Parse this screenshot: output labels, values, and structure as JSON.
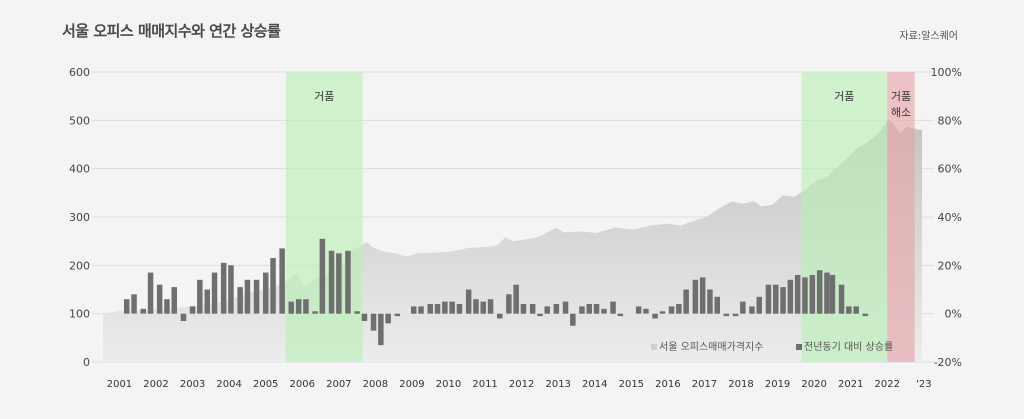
{
  "title": "서울 오피스 매매지수와 연간 상승률",
  "source": "자료:알스퀘어",
  "colors": {
    "index_area": "#c4c4c4",
    "bar": "#6f6f6f",
    "bubble": "#b8f0b4",
    "bubble_end": "#e9a3a8",
    "grid": "#dedede"
  },
  "chart_data": {
    "type": "area+bar",
    "yleft": {
      "ticks": [
        0,
        100,
        200,
        300,
        400,
        500,
        600
      ],
      "min": 0,
      "max": 600
    },
    "yright": {
      "ticks": [
        "-20%",
        "0%",
        "20%",
        "40%",
        "60%",
        "80%",
        "100%"
      ],
      "min": -20,
      "max": 100
    },
    "x_labels": [
      "2001",
      "2002",
      "2003",
      "2004",
      "2005",
      "2006",
      "2007",
      "2008",
      "2009",
      "2010",
      "2011",
      "2012",
      "2013",
      "2014",
      "2015",
      "2016",
      "2017",
      "2018",
      "2019",
      "2020",
      "2021",
      "2022",
      "'23"
    ],
    "x_range": [
      2001,
      2023.4
    ],
    "legend": [
      "서울 오피스매매가격지수",
      "전년동기 대비 상승률"
    ],
    "annotations": [
      {
        "label": "거품",
        "from": 2006.0,
        "to": 2008.1,
        "color": "bubble"
      },
      {
        "label": "거품",
        "from": 2020.1,
        "to": 2022.45,
        "color": "bubble"
      },
      {
        "label": "거품\n해소",
        "from": 2022.45,
        "to": 2023.2,
        "color": "bubble_end"
      }
    ],
    "index_series": {
      "name": "서울 오피스매매가격지수",
      "points": [
        [
          2001.0,
          100
        ],
        [
          2001.5,
          107
        ],
        [
          2002.0,
          107
        ],
        [
          2002.5,
          110
        ],
        [
          2003.0,
          112
        ],
        [
          2003.5,
          116
        ],
        [
          2004.0,
          120
        ],
        [
          2004.5,
          130
        ],
        [
          2005.0,
          143
        ],
        [
          2005.5,
          152
        ],
        [
          2006.0,
          165
        ],
        [
          2006.3,
          185
        ],
        [
          2006.5,
          155
        ],
        [
          2006.8,
          173
        ],
        [
          2007.0,
          180
        ],
        [
          2007.5,
          192
        ],
        [
          2007.8,
          232
        ],
        [
          2008.0,
          238
        ],
        [
          2008.2,
          248
        ],
        [
          2008.4,
          236
        ],
        [
          2008.7,
          228
        ],
        [
          2009.0,
          225
        ],
        [
          2009.3,
          218
        ],
        [
          2009.6,
          225
        ],
        [
          2010.0,
          226
        ],
        [
          2010.5,
          228
        ],
        [
          2011.0,
          236
        ],
        [
          2011.5,
          238
        ],
        [
          2011.8,
          242
        ],
        [
          2012.0,
          258
        ],
        [
          2012.2,
          250
        ],
        [
          2012.5,
          253
        ],
        [
          2012.8,
          257
        ],
        [
          2013.0,
          262
        ],
        [
          2013.4,
          278
        ],
        [
          2013.6,
          268
        ],
        [
          2014.0,
          270
        ],
        [
          2014.5,
          267
        ],
        [
          2015.0,
          278
        ],
        [
          2015.5,
          274
        ],
        [
          2016.0,
          283
        ],
        [
          2016.5,
          286
        ],
        [
          2016.8,
          282
        ],
        [
          2017.0,
          288
        ],
        [
          2017.5,
          300
        ],
        [
          2017.9,
          320
        ],
        [
          2018.2,
          332
        ],
        [
          2018.5,
          327
        ],
        [
          2018.8,
          333
        ],
        [
          2019.0,
          322
        ],
        [
          2019.3,
          325
        ],
        [
          2019.6,
          345
        ],
        [
          2019.9,
          342
        ],
        [
          2020.2,
          355
        ],
        [
          2020.5,
          376
        ],
        [
          2020.8,
          382
        ],
        [
          2021.0,
          398
        ],
        [
          2021.3,
          418
        ],
        [
          2021.6,
          440
        ],
        [
          2021.9,
          455
        ],
        [
          2022.2,
          472
        ],
        [
          2022.45,
          500
        ],
        [
          2022.6,
          495
        ],
        [
          2022.8,
          474
        ],
        [
          2023.0,
          487
        ],
        [
          2023.2,
          482
        ],
        [
          2023.4,
          480
        ]
      ]
    },
    "growth_series": {
      "name": "전년동기 대비 상승률",
      "unit": "%",
      "points": [
        [
          2001.65,
          6
        ],
        [
          2001.85,
          8
        ],
        [
          2002.1,
          2
        ],
        [
          2002.3,
          17
        ],
        [
          2002.55,
          12
        ],
        [
          2002.75,
          6
        ],
        [
          2002.95,
          11
        ],
        [
          2003.2,
          -3
        ],
        [
          2003.45,
          3
        ],
        [
          2003.65,
          14
        ],
        [
          2003.85,
          10
        ],
        [
          2004.05,
          17
        ],
        [
          2004.3,
          21
        ],
        [
          2004.5,
          20
        ],
        [
          2004.75,
          11
        ],
        [
          2004.95,
          14
        ],
        [
          2005.2,
          14
        ],
        [
          2005.45,
          17
        ],
        [
          2005.65,
          23
        ],
        [
          2005.9,
          27
        ],
        [
          2006.15,
          5
        ],
        [
          2006.35,
          6
        ],
        [
          2006.55,
          6
        ],
        [
          2006.8,
          1
        ],
        [
          2007.0,
          31
        ],
        [
          2007.25,
          26
        ],
        [
          2007.45,
          25
        ],
        [
          2007.7,
          26
        ],
        [
          2007.95,
          1
        ],
        [
          2008.15,
          -3
        ],
        [
          2008.4,
          -7
        ],
        [
          2008.6,
          -13
        ],
        [
          2008.8,
          -4
        ],
        [
          2009.05,
          -1
        ],
        [
          2009.3,
          0
        ],
        [
          2009.5,
          3
        ],
        [
          2009.7,
          3
        ],
        [
          2009.95,
          4
        ],
        [
          2010.15,
          4
        ],
        [
          2010.35,
          5
        ],
        [
          2010.55,
          5
        ],
        [
          2010.75,
          4
        ],
        [
          2011.0,
          10
        ],
        [
          2011.2,
          6
        ],
        [
          2011.4,
          5
        ],
        [
          2011.6,
          6
        ],
        [
          2011.85,
          -2
        ],
        [
          2012.1,
          8
        ],
        [
          2012.3,
          12
        ],
        [
          2012.5,
          4
        ],
        [
          2012.75,
          4
        ],
        [
          2012.95,
          -1
        ],
        [
          2013.15,
          3
        ],
        [
          2013.4,
          4
        ],
        [
          2013.65,
          5
        ],
        [
          2013.85,
          -5
        ],
        [
          2014.1,
          3
        ],
        [
          2014.3,
          4
        ],
        [
          2014.5,
          4
        ],
        [
          2014.7,
          2
        ],
        [
          2014.95,
          5
        ],
        [
          2015.15,
          -1
        ],
        [
          2015.4,
          0
        ],
        [
          2015.65,
          3
        ],
        [
          2015.85,
          2
        ],
        [
          2016.1,
          -2
        ],
        [
          2016.3,
          1
        ],
        [
          2016.55,
          3
        ],
        [
          2016.75,
          4
        ],
        [
          2016.95,
          10
        ],
        [
          2017.2,
          14
        ],
        [
          2017.4,
          15
        ],
        [
          2017.6,
          10
        ],
        [
          2017.8,
          7
        ],
        [
          2018.05,
          -1
        ],
        [
          2018.3,
          -1
        ],
        [
          2018.5,
          5
        ],
        [
          2018.75,
          3
        ],
        [
          2018.95,
          7
        ],
        [
          2019.2,
          12
        ],
        [
          2019.4,
          12
        ],
        [
          2019.6,
          11
        ],
        [
          2019.8,
          14
        ],
        [
          2020.0,
          16
        ],
        [
          2020.2,
          15
        ],
        [
          2020.4,
          16
        ],
        [
          2020.6,
          18
        ],
        [
          2020.8,
          17
        ],
        [
          2020.95,
          16
        ],
        [
          2021.2,
          12
        ],
        [
          2021.4,
          3
        ],
        [
          2021.6,
          3
        ],
        [
          2021.85,
          -1
        ]
      ]
    }
  }
}
